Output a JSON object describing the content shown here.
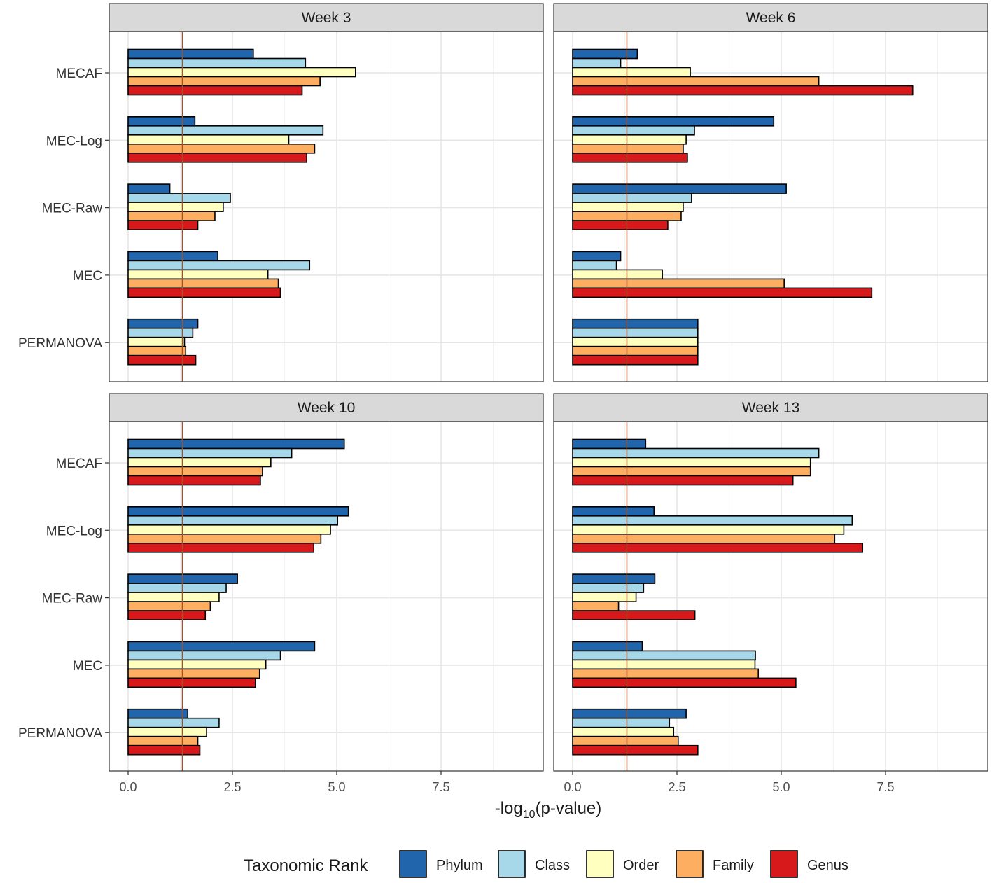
{
  "chart_data": {
    "type": "bar",
    "orientation": "horizontal",
    "xlabel": "-log10(p-value)",
    "xlabel_main": "-log",
    "xlabel_sub": "10",
    "xlabel_rest": "(p-value)",
    "xlim": [
      -0.45,
      10
    ],
    "xticks": [
      0.0,
      2.5,
      5.0,
      7.5
    ],
    "xtick_labels": [
      "0.0",
      "2.5",
      "5.0",
      "7.5"
    ],
    "reference_line": 1.3,
    "reference_color": "#a0522d",
    "methods": [
      "MECAF",
      "MEC-Log",
      "MEC-Raw",
      "MEC",
      "PERMANOVA"
    ],
    "legend": {
      "title": "Taxonomic Rank",
      "position": "bottom",
      "items": [
        {
          "name": "Phylum",
          "color": "#2166ac"
        },
        {
          "name": "Class",
          "color": "#a6d8ea"
        },
        {
          "name": "Order",
          "color": "#ffffbf"
        },
        {
          "name": "Family",
          "color": "#fdae61"
        },
        {
          "name": "Genus",
          "color": "#d7191c"
        }
      ]
    },
    "panels": [
      {
        "title": "Week 3",
        "values": {
          "MECAF": [
            3.0,
            4.25,
            5.45,
            4.6,
            4.17
          ],
          "MEC-Log": [
            1.6,
            4.67,
            3.85,
            4.47,
            4.28
          ],
          "MEC-Raw": [
            1.0,
            2.45,
            2.28,
            2.08,
            1.67
          ],
          "MEC": [
            2.15,
            4.35,
            3.35,
            3.6,
            3.65
          ],
          "PERMANOVA": [
            1.67,
            1.55,
            1.35,
            1.38,
            1.62
          ]
        }
      },
      {
        "title": "Week 6",
        "values": {
          "MECAF": [
            1.55,
            1.15,
            2.82,
            5.9,
            8.15
          ],
          "MEC-Log": [
            4.82,
            2.92,
            2.72,
            2.65,
            2.75
          ],
          "MEC-Raw": [
            5.12,
            2.85,
            2.65,
            2.6,
            2.28
          ],
          "MEC": [
            1.15,
            1.05,
            2.15,
            5.07,
            7.17
          ],
          "PERMANOVA": [
            3.0,
            3.0,
            3.0,
            3.0,
            3.0
          ]
        }
      },
      {
        "title": "Week 10",
        "values": {
          "MECAF": [
            5.18,
            3.92,
            3.42,
            3.22,
            3.17
          ],
          "MEC-Log": [
            5.28,
            5.02,
            4.85,
            4.62,
            4.45
          ],
          "MEC-Raw": [
            2.62,
            2.35,
            2.18,
            1.97,
            1.85
          ],
          "MEC": [
            4.47,
            3.65,
            3.3,
            3.15,
            3.05
          ],
          "PERMANOVA": [
            1.43,
            2.18,
            1.88,
            1.67,
            1.72
          ]
        }
      },
      {
        "title": "Week 13",
        "values": {
          "MECAF": [
            1.75,
            5.9,
            5.7,
            5.7,
            5.28
          ],
          "MEC-Log": [
            1.95,
            6.7,
            6.5,
            6.28,
            6.95
          ],
          "MEC-Raw": [
            1.97,
            1.7,
            1.52,
            1.1,
            2.93
          ],
          "MEC": [
            1.67,
            4.38,
            4.37,
            4.45,
            5.35
          ],
          "PERMANOVA": [
            2.72,
            2.32,
            2.42,
            2.53,
            3.0
          ]
        }
      }
    ]
  }
}
